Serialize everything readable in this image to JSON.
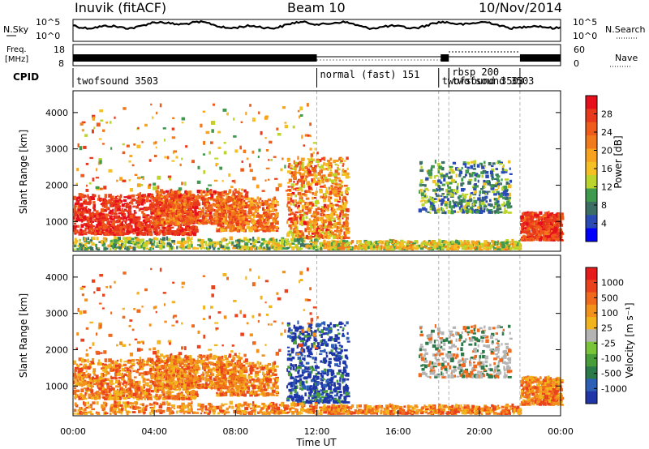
{
  "header": {
    "station": "Inuvik (fitACF)",
    "beam": "Beam 10",
    "date": "10/Nov/2014"
  },
  "left_labels": {
    "nsky": "N.Sky",
    "freq_line1": "Freq.",
    "freq_line2": "[MHz]",
    "cpid": "CPID"
  },
  "right_labels": {
    "nsearch": "N.Search",
    "nave": "Nave"
  },
  "colors": {
    "power_scale": [
      "#0000ff",
      "#2a4ab4",
      "#3c6e64",
      "#3f9a4d",
      "#bcd52c",
      "#f5c024",
      "#f7a320",
      "#f07a1c",
      "#ee5b1a",
      "#e9391c",
      "#e60f1c"
    ],
    "velocity_scale": [
      "#1f35a8",
      "#2d5fb6",
      "#2c7a4a",
      "#4a9e3a",
      "#7ac43a",
      "#b4b4b4",
      "#f2b41c",
      "#f2921c",
      "#ef6a1c",
      "#ea421c",
      "#e61c1c"
    ],
    "grid_dash": "#b4b4b4"
  },
  "chart_data": [
    {
      "type": "line",
      "name": "noise-panel",
      "left_axis_label": "N.Sky",
      "right_axis_label": "N.Search",
      "left_ticks": [
        "10^5",
        "10^0"
      ],
      "right_ticks": [
        "10^5",
        "10^0"
      ],
      "x_range_hours": [
        0,
        24
      ]
    },
    {
      "type": "line",
      "name": "frequency-panel",
      "left_axis_label": "Freq. [MHz]",
      "right_axis_label": "Nave",
      "left_ticks": [
        "18",
        "8"
      ],
      "right_ticks": [
        "60",
        "0"
      ],
      "x_range_hours": [
        0,
        24
      ]
    },
    {
      "type": "table",
      "name": "cpid-panel",
      "label": "CPID",
      "segments": [
        {
          "start_hour": 0.0,
          "label": "twofsound 3503"
        },
        {
          "start_hour": 12.0,
          "label": "normal (fast) 151"
        },
        {
          "start_hour": 18.0,
          "label": "twofsound 3503"
        },
        {
          "start_hour": 18.5,
          "label": "rbsp 200"
        },
        {
          "start_hour": 18.5,
          "label": "twofsound 3503"
        }
      ],
      "dashed_marks_hours": [
        12.0,
        18.0,
        18.5,
        22.0
      ]
    },
    {
      "type": "heatmap",
      "name": "power-panel",
      "ylabel": "Slant Range [km]",
      "yticks": [
        1000,
        2000,
        3000,
        4000
      ],
      "ylim": [
        180,
        4600
      ],
      "colorbar_label": "Power [dB]",
      "colorbar_ticks": [
        4,
        8,
        12,
        16,
        20,
        24,
        28
      ],
      "colorbar_range": [
        0,
        32
      ]
    },
    {
      "type": "heatmap",
      "name": "velocity-panel",
      "ylabel": "Slant Range [km]",
      "yticks": [
        1000,
        2000,
        3000,
        4000
      ],
      "ylim": [
        180,
        4600
      ],
      "colorbar_label": "Velocity [m s⁻¹]",
      "colorbar_ticks": [
        "1000",
        "500",
        "100",
        "25",
        "-25",
        "-100",
        "-500",
        "-1000"
      ],
      "xlabel": "Time UT",
      "xticks": [
        "00:00",
        "04:00",
        "08:00",
        "12:00",
        "16:00",
        "20:00",
        "00:00"
      ],
      "xlim_hours": [
        0,
        24
      ]
    }
  ]
}
